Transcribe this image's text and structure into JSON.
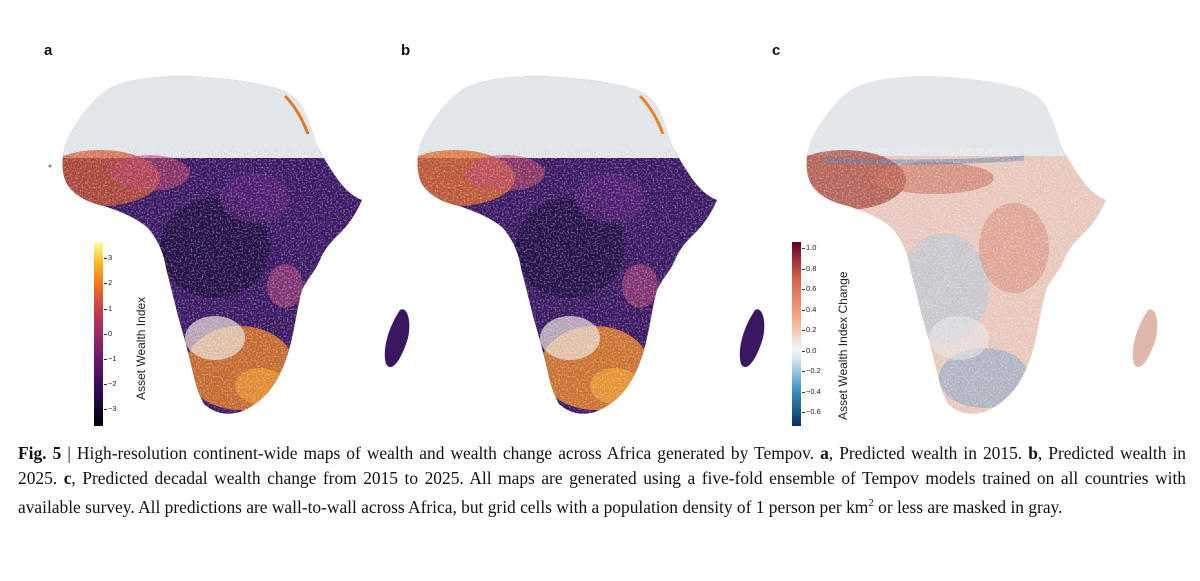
{
  "panels": [
    {
      "letter": "a",
      "colorbar": {
        "label": "Asset Wealth Index",
        "ticks": [
          "3",
          "2",
          "1",
          "0",
          "−1",
          "−2",
          "−3"
        ]
      }
    },
    {
      "letter": "b"
    },
    {
      "letter": "c",
      "colorbar": {
        "label": "Asset Wealth Index Change",
        "ticks": [
          "1.0",
          "0.8",
          "0.6",
          "0.4",
          "0.2",
          "0.0",
          "−0.2",
          "−0.4",
          "−0.6"
        ]
      }
    }
  ],
  "colors": {
    "masked": "#e3e6ea",
    "wealth_low": "#1a0b3a",
    "wealth_mid": "#6a2a8a",
    "wealth_high": "#f28d22",
    "change_pos": "#8b1a1f",
    "change_neg": "#1f4e8a"
  },
  "caption": {
    "fig_label": "Fig. 5",
    "sep": " | ",
    "text1": "High-resolution continent-wide maps of wealth and wealth change across Africa generated by Tempov. ",
    "a_label": "a",
    "a_text": ", Predicted wealth in 2015. ",
    "b_label": "b",
    "b_text": ", Predicted wealth in 2025. ",
    "c_label": "c",
    "c_text": ", Predicted decadal wealth change from 2015 to 2025. All maps are generated using a five-fold ensemble of Tempov models trained on all countries with available survey. All predictions are wall-to-wall across Africa, but grid cells with a population density of 1 person per km",
    "sup": "2",
    "end_text": " or less are masked in gray."
  }
}
